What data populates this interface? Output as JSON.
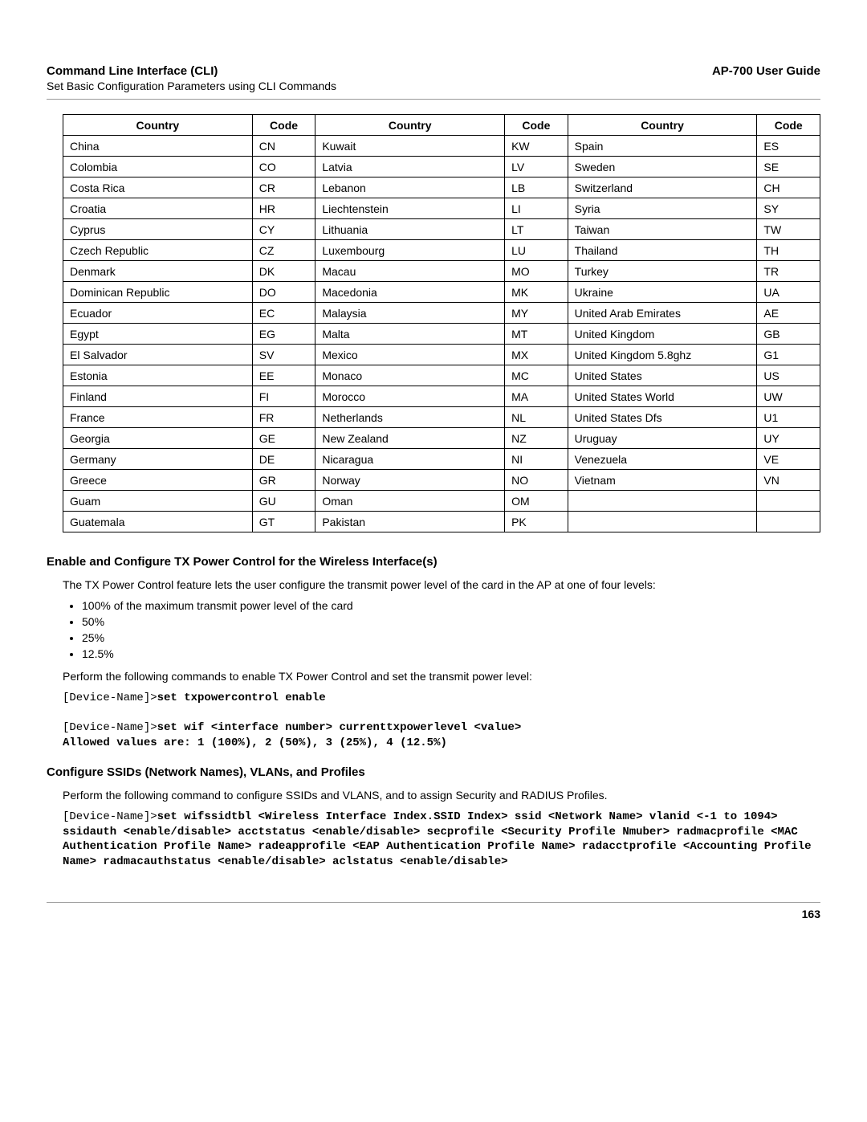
{
  "header": {
    "title": "Command Line Interface (CLI)",
    "subtitle": "Set Basic Configuration Parameters using CLI Commands",
    "guide": "AP-700 User Guide"
  },
  "table": {
    "headers": [
      "Country",
      "Code",
      "Country",
      "Code",
      "Country",
      "Code"
    ],
    "rows": [
      [
        "China",
        "CN",
        "Kuwait",
        "KW",
        "Spain",
        "ES"
      ],
      [
        "Colombia",
        "CO",
        "Latvia",
        "LV",
        "Sweden",
        "SE"
      ],
      [
        "Costa Rica",
        "CR",
        "Lebanon",
        "LB",
        "Switzerland",
        "CH"
      ],
      [
        "Croatia",
        "HR",
        "Liechtenstein",
        "LI",
        "Syria",
        "SY"
      ],
      [
        "Cyprus",
        "CY",
        "Lithuania",
        "LT",
        "Taiwan",
        "TW"
      ],
      [
        "Czech Republic",
        "CZ",
        "Luxembourg",
        "LU",
        "Thailand",
        "TH"
      ],
      [
        "Denmark",
        "DK",
        "Macau",
        "MO",
        "Turkey",
        "TR"
      ],
      [
        "Dominican Republic",
        "DO",
        "Macedonia",
        "MK",
        "Ukraine",
        "UA"
      ],
      [
        "Ecuador",
        "EC",
        "Malaysia",
        "MY",
        "United Arab Emirates",
        "AE"
      ],
      [
        "Egypt",
        "EG",
        "Malta",
        "MT",
        "United Kingdom",
        "GB"
      ],
      [
        "El Salvador",
        "SV",
        "Mexico",
        "MX",
        "United Kingdom 5.8ghz",
        "G1"
      ],
      [
        "Estonia",
        "EE",
        "Monaco",
        "MC",
        "United States",
        "US"
      ],
      [
        "Finland",
        "FI",
        "Morocco",
        "MA",
        "United States World",
        "UW"
      ],
      [
        "France",
        "FR",
        "Netherlands",
        "NL",
        "United States Dfs",
        "U1"
      ],
      [
        "Georgia",
        "GE",
        "New Zealand",
        "NZ",
        "Uruguay",
        "UY"
      ],
      [
        "Germany",
        "DE",
        "Nicaragua",
        "NI",
        "Venezuela",
        "VE"
      ],
      [
        "Greece",
        "GR",
        "Norway",
        "NO",
        "Vietnam",
        "VN"
      ],
      [
        "Guam",
        "GU",
        "Oman",
        "OM",
        "",
        ""
      ],
      [
        "Guatemala",
        "GT",
        "Pakistan",
        "PK",
        "",
        ""
      ]
    ]
  },
  "section1": {
    "heading": "Enable and Configure TX Power Control for the Wireless Interface(s)",
    "intro": "The TX Power Control feature lets the user configure the transmit power level of the card in the AP at one of four levels:",
    "bullets": [
      "100% of the maximum transmit power level of the card",
      "50%",
      "25%",
      "12.5%"
    ],
    "perform": "Perform the following commands to enable TX Power Control and set the transmit power level:",
    "code1_prompt": "[Device-Name]>",
    "code1_cmd": "set txpowercontrol enable",
    "code2_prompt": "[Device-Name]>",
    "code2_cmd": "set wif <interface number> currenttxpowerlevel <value>",
    "code2_line2": "Allowed values are: 1 (100%), 2 (50%), 3 (25%), 4 (12.5%)"
  },
  "section2": {
    "heading": "Configure SSIDs (Network Names), VLANs, and Profiles",
    "intro": "Perform the following command to configure SSIDs and VLANS, and to assign Security and RADIUS Profiles.",
    "code_prompt": "[Device-Name]>",
    "code_cmd": "set wifssidtbl <Wireless Interface Index.SSID Index> ssid <Network Name> vlanid <-1 to 1094> ssidauth <enable/disable> acctstatus <enable/disable> secprofile <Security Profile Nmuber> radmacprofile <MAC Authentication Profile Name> radeapprofile <EAP Authentication Profile Name> radacctprofile <Accounting Profile Name> radmacauthstatus <enable/disable> aclstatus <enable/disable>"
  },
  "page_number": "163"
}
